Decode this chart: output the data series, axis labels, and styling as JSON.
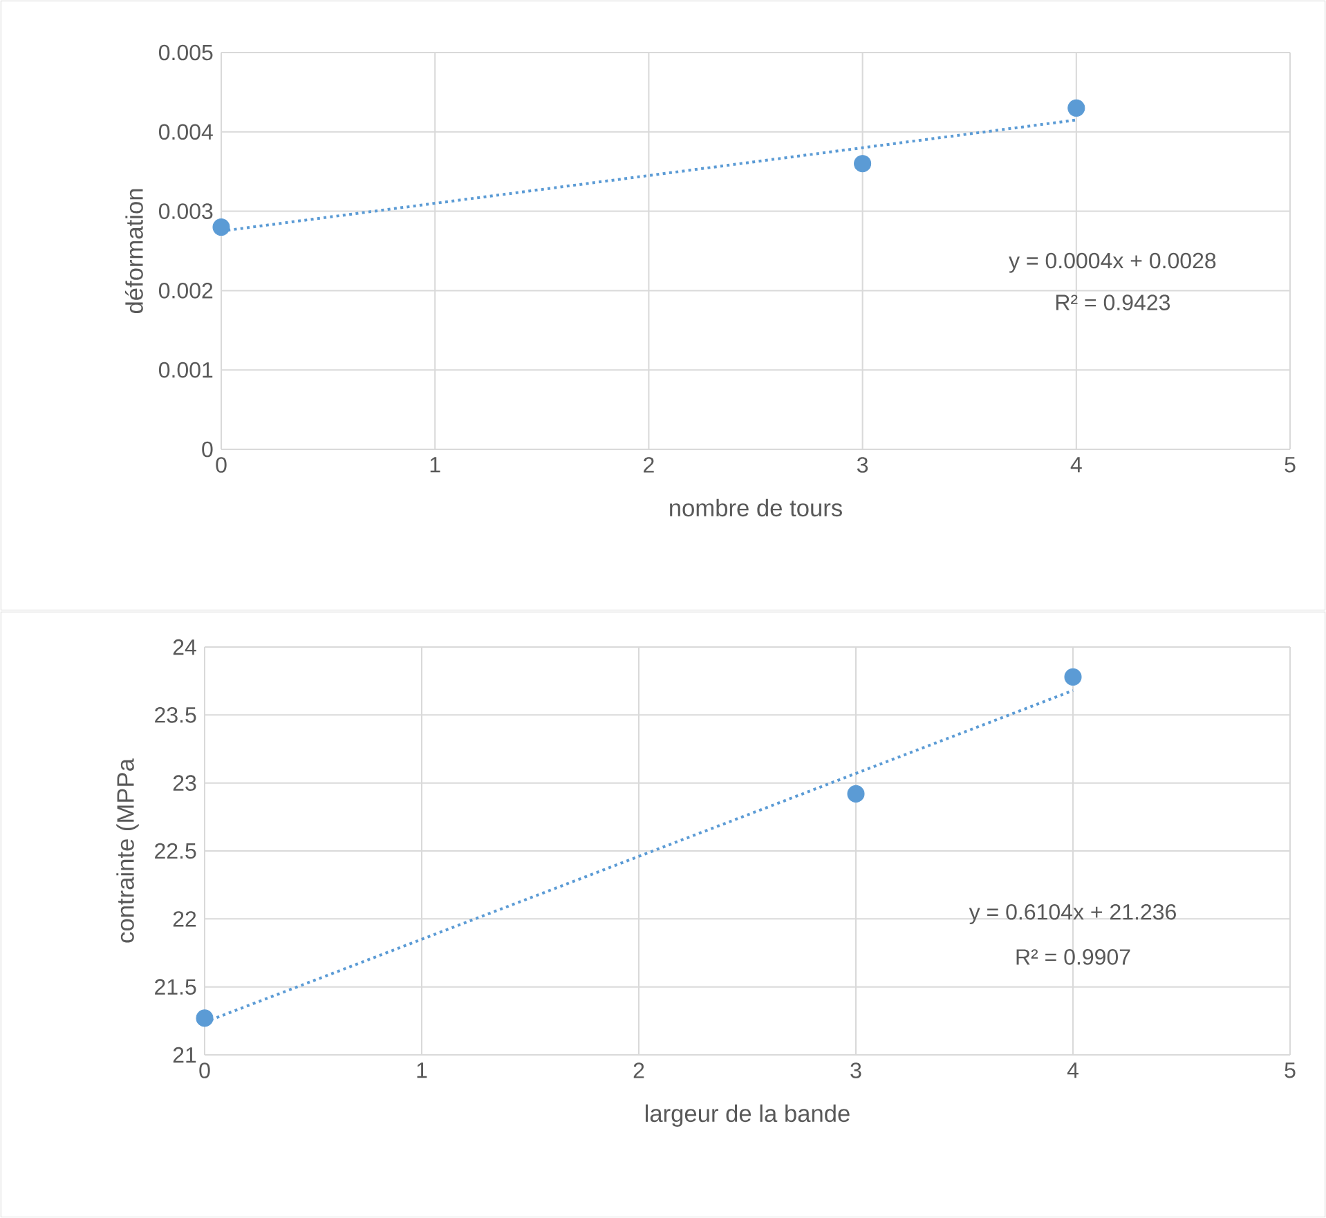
{
  "chart_data": [
    {
      "type": "scatter",
      "xlabel": "nombre de tours",
      "ylabel": "déformation",
      "xlim": [
        0,
        5
      ],
      "ylim": [
        0,
        0.005
      ],
      "xticks": [
        0,
        1,
        2,
        3,
        4,
        5
      ],
      "yticks": [
        0,
        0.001,
        0.002,
        0.003,
        0.004,
        0.005
      ],
      "grid": true,
      "series": [
        {
          "type": "scatter",
          "color": "#5b9bd5",
          "marker": "circle",
          "x": [
            0,
            3,
            4
          ],
          "values": [
            0.0028,
            0.0036,
            0.0043
          ]
        },
        {
          "type": "line",
          "color": "#5b9bd5",
          "marker": "none",
          "line_style": "dotted",
          "x": [
            0,
            4
          ],
          "values": [
            0.00275,
            0.00415
          ]
        }
      ],
      "annotations": [
        "y = 0.0004x + 0.0028",
        "R² = 0.9423"
      ]
    },
    {
      "type": "scatter",
      "xlabel": "largeur de la bande",
      "ylabel": "contrainte (MPPa",
      "xlim": [
        0,
        5
      ],
      "ylim": [
        21,
        24
      ],
      "xticks": [
        0,
        1,
        2,
        3,
        4,
        5
      ],
      "yticks": [
        21,
        21.5,
        22,
        22.5,
        23,
        23.5,
        24
      ],
      "grid": true,
      "series": [
        {
          "type": "scatter",
          "color": "#5b9bd5",
          "marker": "circle",
          "x": [
            0,
            3,
            4
          ],
          "values": [
            21.27,
            22.92,
            23.78
          ]
        },
        {
          "type": "line",
          "color": "#5b9bd5",
          "marker": "none",
          "line_style": "dotted",
          "x": [
            0,
            4
          ],
          "values": [
            21.24,
            23.68
          ]
        }
      ],
      "annotations": [
        "y = 0.6104x + 21.236",
        "R² = 0.9907"
      ]
    }
  ]
}
